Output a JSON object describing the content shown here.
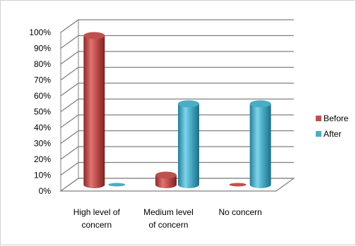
{
  "chart_data": {
    "type": "bar",
    "categories": [
      "High level of concern",
      "Medium level of concern",
      "No concern"
    ],
    "category_lines": [
      [
        "High level of",
        "concern"
      ],
      [
        "Medium level",
        "of concern"
      ],
      [
        "No concern"
      ]
    ],
    "series": [
      {
        "name": "Before",
        "values": [
          94,
          6,
          0
        ],
        "color": "#c0504d"
      },
      {
        "name": "After",
        "values": [
          0,
          51,
          51
        ],
        "color": "#4bacc6"
      }
    ],
    "ylim": [
      0,
      100
    ],
    "yticks": [
      "0%",
      "10%",
      "20%",
      "30%",
      "40%",
      "50%",
      "60%",
      "70%",
      "80%",
      "90%",
      "100%"
    ],
    "grid": true,
    "legend_position": "right",
    "bar_shape": "cylinder"
  }
}
